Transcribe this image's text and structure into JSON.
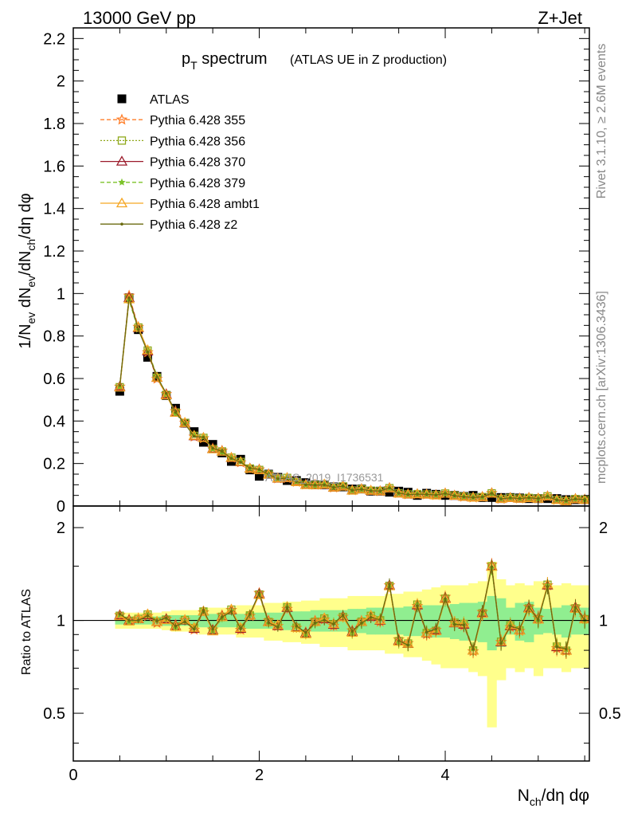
{
  "header": {
    "left": "13000 GeV pp",
    "right": "Z+Jet"
  },
  "side_labels": {
    "rivet": "Rivet 3.1.10, ≥ 2.6M events",
    "mcplots": "mcplots.cern.ch [arXiv:1306.3436]"
  },
  "watermark": "ATLAS_2019_I1736531",
  "chart_data": [
    {
      "type": "line",
      "title": "p_T spectrum",
      "title_parts": {
        "p": "p",
        "sub": "T",
        "rest": " spectrum"
      },
      "subtitle": "(ATLAS UE in Z production)",
      "ylabel": "1/N_ev dN_ev/dN_ch/dη dφ",
      "ylabel_parts": {
        "a": "1/N",
        "a_sub": "ev",
        "b": " dN",
        "b_sub": "ev",
        "c": "/dN",
        "c_sub": "ch",
        "d": "/dη dφ"
      },
      "xlim": [
        0,
        5.55
      ],
      "ylim": [
        0,
        2.25
      ],
      "yticks": [
        "0",
        "0.2",
        "0.4",
        "0.6",
        "0.8",
        "1",
        "1.2",
        "1.4",
        "1.6",
        "1.8",
        "2",
        "2.2"
      ],
      "x": [
        0.5,
        0.6,
        0.7,
        0.8,
        0.9,
        1.0,
        1.1,
        1.2,
        1.3,
        1.4,
        1.5,
        1.6,
        1.7,
        1.8,
        1.9,
        2.0,
        2.1,
        2.2,
        2.3,
        2.4,
        2.5,
        2.6,
        2.7,
        2.8,
        2.9,
        3.0,
        3.1,
        3.2,
        3.3,
        3.4,
        3.5,
        3.6,
        3.7,
        3.8,
        3.9,
        4.0,
        4.1,
        4.2,
        4.3,
        4.4,
        4.5,
        4.6,
        4.7,
        4.8,
        4.9,
        5.0,
        5.1,
        5.2,
        5.3,
        5.4,
        5.5
      ],
      "atlas": [
        0.54,
        0.98,
        0.83,
        0.7,
        0.61,
        0.52,
        0.46,
        0.39,
        0.35,
        0.3,
        0.29,
        0.25,
        0.21,
        0.22,
        0.17,
        0.14,
        0.15,
        0.135,
        0.12,
        0.12,
        0.11,
        0.1,
        0.1,
        0.09,
        0.09,
        0.08,
        0.08,
        0.07,
        0.07,
        0.065,
        0.07,
        0.065,
        0.05,
        0.06,
        0.055,
        0.05,
        0.05,
        0.045,
        0.05,
        0.04,
        0.04,
        0.04,
        0.04,
        0.038,
        0.035,
        0.035,
        0.035,
        0.035,
        0.03,
        0.03,
        0.03
      ],
      "legend_position": "top-left",
      "legend": [
        {
          "label": "ATLAS",
          "marker": "square-filled",
          "color": "#000000"
        },
        {
          "label": "Pythia 6.428 355",
          "marker": "star-open",
          "color": "#ff7f2a",
          "dash": "5,3"
        },
        {
          "label": "Pythia 6.428 356",
          "marker": "square-open",
          "color": "#8fa81a",
          "dash": "2,2"
        },
        {
          "label": "Pythia 6.428 370",
          "marker": "triangle-open",
          "color": "#9b1a2a",
          "dash": ""
        },
        {
          "label": "Pythia 6.428 379",
          "marker": "star-filled",
          "color": "#7cc32a",
          "dash": "5,3"
        },
        {
          "label": "Pythia 6.428 ambt1",
          "marker": "triangle-open",
          "color": "#f5a623",
          "dash": ""
        },
        {
          "label": "Pythia 6.428 z2",
          "marker": "dot",
          "color": "#6b6b10",
          "dash": ""
        }
      ]
    },
    {
      "type": "line",
      "ylabel": "Ratio to ATLAS",
      "xlabel": "N_ch/dη dφ",
      "xlabel_parts": {
        "a": "N",
        "a_sub": "ch",
        "b": "/dη dφ"
      },
      "xlim": [
        0,
        5.55
      ],
      "ylim": [
        0.35,
        2.35
      ],
      "log_scale": true,
      "yticks_left": [
        "0.5",
        "1",
        "2"
      ],
      "yticks_right": [
        "0.5",
        "1",
        "2"
      ],
      "xticks": [
        "0",
        "2",
        "4"
      ],
      "ratio": [
        1.04,
        1.0,
        1.01,
        1.04,
        0.99,
        1.01,
        0.96,
        1.0,
        0.94,
        1.07,
        0.93,
        1.03,
        1.08,
        0.94,
        1.04,
        1.22,
        0.99,
        0.96,
        1.1,
        0.95,
        0.91,
        0.99,
        1.01,
        0.97,
        1.03,
        0.92,
        0.99,
        1.03,
        1.0,
        1.3,
        0.86,
        0.84,
        1.12,
        0.91,
        0.93,
        1.18,
        0.98,
        0.97,
        0.8,
        1.06,
        1.5,
        0.85,
        0.96,
        0.93,
        1.1,
        1.01,
        1.3,
        0.82,
        0.8,
        1.1,
        1.01
      ],
      "band_stat": [
        0.03,
        0.03,
        0.03,
        0.03,
        0.03,
        0.04,
        0.04,
        0.04,
        0.04,
        0.05,
        0.05,
        0.05,
        0.05,
        0.05,
        0.06,
        0.06,
        0.06,
        0.06,
        0.07,
        0.07,
        0.07,
        0.08,
        0.08,
        0.08,
        0.08,
        0.09,
        0.09,
        0.1,
        0.1,
        0.1,
        0.1,
        0.11,
        0.11,
        0.12,
        0.12,
        0.12,
        0.13,
        0.14,
        0.14,
        0.15,
        0.2,
        0.18,
        0.1,
        0.14,
        0.15,
        0.1,
        0.09,
        0.1,
        0.12,
        0.1,
        0.1
      ],
      "band_total": [
        0.06,
        0.06,
        0.06,
        0.06,
        0.06,
        0.07,
        0.08,
        0.08,
        0.08,
        0.1,
        0.1,
        0.1,
        0.1,
        0.12,
        0.12,
        0.12,
        0.14,
        0.14,
        0.15,
        0.15,
        0.16,
        0.16,
        0.18,
        0.18,
        0.18,
        0.2,
        0.2,
        0.2,
        0.2,
        0.22,
        0.22,
        0.24,
        0.24,
        0.26,
        0.28,
        0.3,
        0.3,
        0.3,
        0.32,
        0.34,
        0.55,
        0.36,
        0.3,
        0.32,
        0.3,
        0.34,
        0.3,
        0.3,
        0.32,
        0.3,
        0.3
      ],
      "band_colors": {
        "stat": "#90ee90",
        "total": "#ffff8c"
      }
    }
  ]
}
